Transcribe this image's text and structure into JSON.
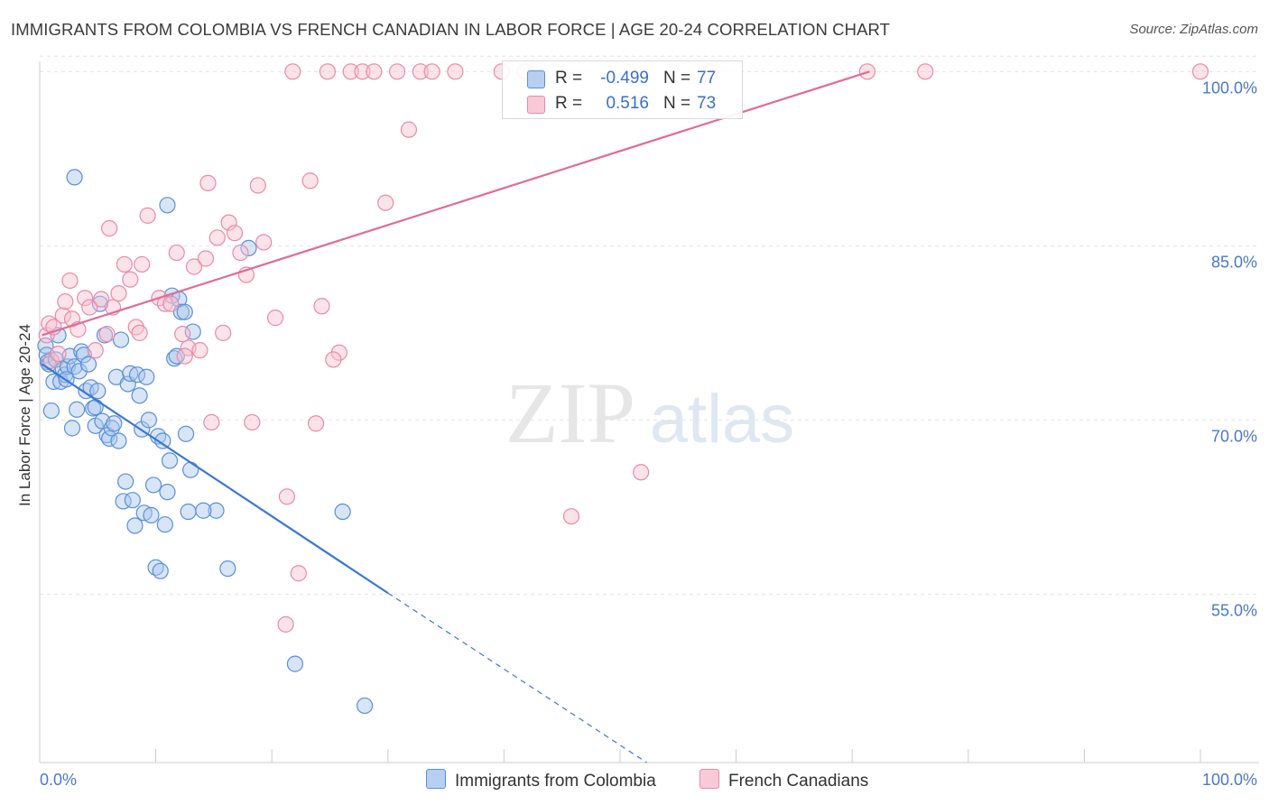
{
  "title": "IMMIGRANTS FROM COLOMBIA VS FRENCH CANADIAN IN LABOR FORCE | AGE 20-24 CORRELATION CHART",
  "source": "Source: ZipAtlas.com",
  "watermark": {
    "zip": "ZIP",
    "atlas": "atlas"
  },
  "colors": {
    "blue_fill": "#a9c5ee",
    "blue_stroke": "#5a8fd8",
    "blue_line": "#3a78d4",
    "pink_fill": "#f6c0d0",
    "pink_stroke": "#e98aa8",
    "pink_line": "#e06d95",
    "tick_text": "#4a78c8",
    "grid": "#e2e2e2"
  },
  "legend": {
    "rows": [
      {
        "r_label": "R =",
        "r_value": "-0.499",
        "n_label": "N =",
        "n_value": "77"
      },
      {
        "r_label": "R =",
        "r_value": "0.516",
        "n_label": "N =",
        "n_value": "73"
      }
    ]
  },
  "bottom_legend": {
    "series1": "Immigrants from Colombia",
    "series2": "French Canadians"
  },
  "chart_data": {
    "type": "scatter",
    "xlabel": "",
    "ylabel": "In Labor Force | Age 20-24",
    "xlim": [
      0,
      100
    ],
    "ylim": [
      40.5,
      101.5
    ],
    "x_tick_labels": [
      "0.0%",
      "100.0%"
    ],
    "y_ticks": [
      {
        "value": 100,
        "label": "100.0%"
      },
      {
        "value": 85,
        "label": "85.0%"
      },
      {
        "value": 70,
        "label": "70.0%"
      },
      {
        "value": 55,
        "label": "55.0%"
      }
    ],
    "grid": "horizontal-dashed",
    "legend_position": "top-center",
    "series": [
      {
        "name": "Immigrants from Colombia",
        "color": "blue",
        "trend": {
          "x0": 0.2,
          "y0": 74.8,
          "x1": 30.0,
          "y1": 55.1,
          "dash_to_x": 52.3,
          "dash_to_y": 40.5
        },
        "points": [
          [
            0.5,
            76.4
          ],
          [
            0.6,
            75.6
          ],
          [
            0.7,
            75.0
          ],
          [
            0.8,
            74.8
          ],
          [
            1.0,
            70.8
          ],
          [
            1.2,
            73.3
          ],
          [
            1.4,
            75.2
          ],
          [
            1.6,
            77.3
          ],
          [
            1.8,
            73.3
          ],
          [
            2.0,
            74.4
          ],
          [
            2.2,
            73.9
          ],
          [
            2.4,
            74.6
          ],
          [
            2.6,
            75.5
          ],
          [
            2.8,
            69.3
          ],
          [
            3.0,
            74.6
          ],
          [
            3.2,
            70.9
          ],
          [
            3.4,
            74.2
          ],
          [
            3.6,
            75.9
          ],
          [
            3.8,
            75.6
          ],
          [
            4.0,
            72.5
          ],
          [
            4.2,
            74.8
          ],
          [
            4.4,
            72.8
          ],
          [
            4.6,
            71.0
          ],
          [
            4.8,
            69.5
          ],
          [
            5.0,
            72.5
          ],
          [
            5.2,
            80.0
          ],
          [
            5.4,
            69.9
          ],
          [
            5.6,
            77.3
          ],
          [
            5.8,
            68.7
          ],
          [
            6.0,
            68.4
          ],
          [
            6.2,
            69.3
          ],
          [
            6.4,
            69.7
          ],
          [
            6.6,
            73.7
          ],
          [
            6.8,
            68.2
          ],
          [
            7.0,
            76.9
          ],
          [
            7.2,
            63.0
          ],
          [
            7.4,
            64.7
          ],
          [
            7.6,
            73.1
          ],
          [
            7.8,
            74.0
          ],
          [
            8.0,
            63.1
          ],
          [
            8.2,
            60.9
          ],
          [
            8.4,
            73.9
          ],
          [
            8.6,
            72.1
          ],
          [
            8.8,
            69.2
          ],
          [
            9.0,
            62.0
          ],
          [
            9.2,
            73.7
          ],
          [
            9.4,
            70.0
          ],
          [
            9.6,
            61.8
          ],
          [
            9.8,
            64.4
          ],
          [
            10.0,
            57.3
          ],
          [
            10.2,
            68.6
          ],
          [
            10.4,
            57.0
          ],
          [
            10.6,
            68.2
          ],
          [
            10.8,
            61.0
          ],
          [
            11.0,
            63.8
          ],
          [
            11.2,
            66.5
          ],
          [
            11.4,
            80.7
          ],
          [
            11.6,
            75.3
          ],
          [
            11.8,
            75.5
          ],
          [
            12.0,
            80.4
          ],
          [
            12.2,
            79.3
          ],
          [
            3.0,
            90.9
          ],
          [
            12.8,
            62.1
          ],
          [
            11.0,
            88.5
          ],
          [
            18.0,
            84.8
          ],
          [
            16.2,
            57.2
          ],
          [
            15.2,
            62.2
          ],
          [
            13.0,
            65.7
          ],
          [
            14.1,
            62.2
          ],
          [
            22.0,
            49.0
          ],
          [
            26.1,
            62.1
          ],
          [
            28.0,
            45.4
          ],
          [
            12.5,
            79.3
          ],
          [
            13.2,
            77.6
          ],
          [
            2.3,
            73.5
          ],
          [
            4.8,
            71.1
          ],
          [
            12.6,
            68.8
          ]
        ]
      },
      {
        "name": "French Canadians",
        "color": "pink",
        "trend": {
          "x0": 0.2,
          "y0": 77.3,
          "x1": 71.5,
          "y1": 100.0
        },
        "points": [
          [
            0.6,
            77.3
          ],
          [
            0.8,
            78.3
          ],
          [
            1.0,
            75.1
          ],
          [
            1.2,
            78.0
          ],
          [
            1.6,
            75.7
          ],
          [
            2.0,
            79.0
          ],
          [
            2.2,
            80.2
          ],
          [
            2.8,
            78.7
          ],
          [
            3.3,
            77.8
          ],
          [
            3.9,
            80.5
          ],
          [
            4.3,
            79.7
          ],
          [
            4.8,
            76.0
          ],
          [
            5.3,
            80.4
          ],
          [
            5.8,
            77.4
          ],
          [
            6.3,
            79.7
          ],
          [
            6.8,
            80.9
          ],
          [
            7.3,
            83.4
          ],
          [
            7.8,
            82.1
          ],
          [
            8.3,
            78.0
          ],
          [
            8.8,
            83.4
          ],
          [
            9.3,
            87.6
          ],
          [
            10.3,
            80.5
          ],
          [
            10.8,
            80.0
          ],
          [
            11.3,
            80.0
          ],
          [
            11.8,
            84.4
          ],
          [
            12.3,
            77.4
          ],
          [
            12.8,
            76.2
          ],
          [
            13.3,
            83.2
          ],
          [
            13.8,
            76.0
          ],
          [
            14.3,
            83.9
          ],
          [
            14.8,
            69.8
          ],
          [
            15.3,
            85.7
          ],
          [
            15.8,
            77.5
          ],
          [
            16.3,
            87.0
          ],
          [
            16.8,
            86.1
          ],
          [
            17.3,
            84.4
          ],
          [
            17.8,
            82.5
          ],
          [
            18.3,
            69.8
          ],
          [
            18.8,
            90.2
          ],
          [
            19.3,
            85.3
          ],
          [
            20.3,
            78.8
          ],
          [
            21.3,
            63.4
          ],
          [
            21.8,
            100.0
          ],
          [
            22.3,
            56.8
          ],
          [
            23.3,
            90.6
          ],
          [
            23.8,
            69.7
          ],
          [
            24.3,
            79.8
          ],
          [
            24.8,
            100.0
          ],
          [
            25.8,
            75.8
          ],
          [
            25.3,
            75.2
          ],
          [
            26.8,
            100.0
          ],
          [
            27.8,
            100.0
          ],
          [
            28.8,
            100.0
          ],
          [
            29.8,
            88.7
          ],
          [
            30.8,
            100.0
          ],
          [
            31.8,
            95.0
          ],
          [
            32.8,
            100.0
          ],
          [
            33.8,
            100.0
          ],
          [
            35.8,
            100.0
          ],
          [
            39.8,
            100.0
          ],
          [
            41.8,
            100.0
          ],
          [
            45.8,
            61.7
          ],
          [
            51.8,
            65.5
          ],
          [
            57.8,
            100.0
          ],
          [
            71.3,
            100.0
          ],
          [
            76.3,
            100.0
          ],
          [
            100.0,
            100.0
          ],
          [
            21.2,
            52.4
          ],
          [
            14.5,
            90.4
          ],
          [
            12.5,
            75.5
          ],
          [
            8.6,
            77.5
          ],
          [
            6.0,
            86.5
          ],
          [
            2.6,
            82.0
          ]
        ]
      }
    ]
  }
}
